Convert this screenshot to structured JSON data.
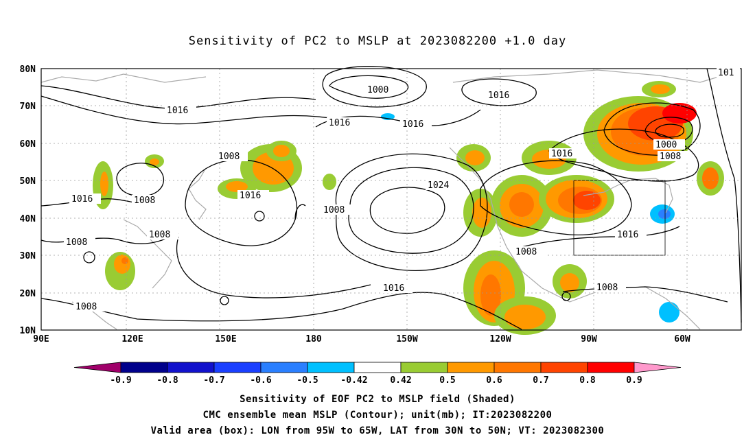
{
  "title": "Sensitivity of PC2 to MSLP at 2023082200 +1.0 day",
  "lat_labels": [
    "80N",
    "70N",
    "60N",
    "50N",
    "40N",
    "30N",
    "20N",
    "10N"
  ],
  "lon_labels": [
    "90E",
    "120E",
    "150E",
    "180",
    "150W",
    "120W",
    "90W",
    "60W"
  ],
  "contour_labels": [
    "1016",
    "1016",
    "1016",
    "1000",
    "1016",
    "101",
    "1000",
    "1008",
    "1016",
    "1008",
    "1008",
    "1016",
    "1008",
    "1016",
    "1008",
    "1008",
    "1024",
    "1008",
    "1016",
    "1016",
    "1008",
    "1008"
  ],
  "colorbar": {
    "labels": [
      "-0.9",
      "-0.8",
      "-0.7",
      "-0.6",
      "-0.5",
      "-0.42",
      "0.42",
      "0.5",
      "0.6",
      "0.7",
      "0.8",
      "0.9"
    ],
    "colors": [
      "#a0006a",
      "#00008b",
      "#1111cc",
      "#1a3fff",
      "#2a7fff",
      "#00c0ff",
      "#ffffff",
      "#99cc33",
      "#ff9900",
      "#ff7700",
      "#ff4400",
      "#ff0000",
      "#ff99cc"
    ]
  },
  "valid_box": {
    "lon_from": "95W",
    "lon_to": "65W",
    "lat_from": "30N",
    "lat_to": "50N"
  },
  "captions": [
    "Sensitivity of EOF PC2 to MSLP field (Shaded)",
    "CMC ensemble mean MSLP (Contour); unit(mb); IT:2023082200",
    "Valid area (box): LON from 95W to 65W, LAT from 30N to 50N; VT: 2023082300"
  ]
}
